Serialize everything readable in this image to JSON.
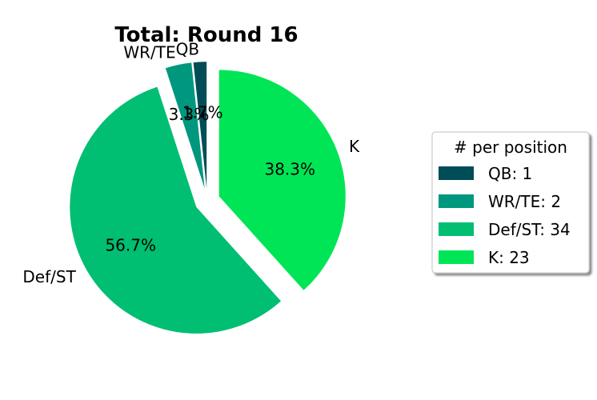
{
  "chart_data": {
    "type": "pie",
    "title": "Total: Round 16",
    "categories": [
      "QB",
      "WR/TE",
      "Def/ST",
      "K"
    ],
    "values": [
      1,
      2,
      34,
      23
    ],
    "percent_labels": [
      "1.7%",
      "3.3%",
      "56.7%",
      "38.3%"
    ],
    "colors": [
      "#004d57",
      "#00977f",
      "#00be72",
      "#00e556"
    ],
    "exploded": [
      true,
      true,
      true,
      true
    ],
    "start_angle_deg": 90,
    "direction": "counterclockwise",
    "legend": {
      "title": "# per position",
      "placement": "center-right",
      "entries": [
        "QB: 1",
        "WR/TE: 2",
        "Def/ST: 34",
        "K: 23"
      ]
    }
  }
}
